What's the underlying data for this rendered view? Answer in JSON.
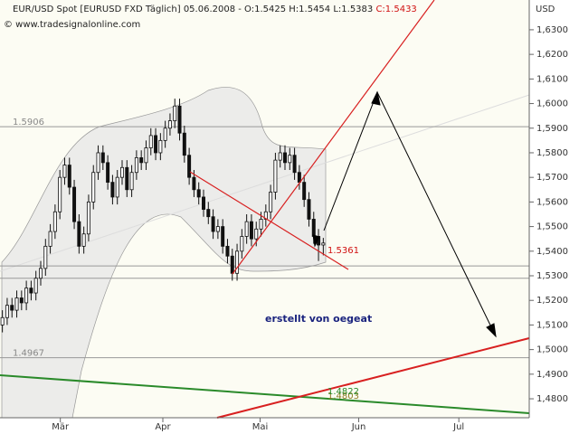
{
  "chart_data": {
    "type": "candlestick",
    "title": "EUR/USD Spot [EURUSD FXD  Täglich] 05.06.2008 - O:1.5425 H:1.5454 L:1.5383",
    "title_close": "C:1.5433",
    "source": "© www.tradesignalonline.com",
    "y_axis_label": "USD",
    "up_color": "#ffffff",
    "down_color": "#111111",
    "xlim": [
      -0.5,
      110
    ],
    "xticks": [
      {
        "value": 12.1,
        "label": "Mär"
      },
      {
        "value": 33.5,
        "label": "Apr"
      },
      {
        "value": 53.8,
        "label": "Mai"
      },
      {
        "value": 74.4,
        "label": "Jun"
      },
      {
        "value": 95.3,
        "label": "Jul"
      }
    ],
    "ylim": [
      1.4723,
      1.6421
    ],
    "yticks": [
      {
        "value": 1.48,
        "label": "1,4800"
      },
      {
        "value": 1.49,
        "label": "1,4900"
      },
      {
        "value": 1.5,
        "label": "1,5000"
      },
      {
        "value": 1.51,
        "label": "1,5100"
      },
      {
        "value": 1.52,
        "label": "1,5200"
      },
      {
        "value": 1.53,
        "label": "1,5300"
      },
      {
        "value": 1.54,
        "label": "1,5400"
      },
      {
        "value": 1.55,
        "label": "1,5500"
      },
      {
        "value": 1.56,
        "label": "1,5600"
      },
      {
        "value": 1.57,
        "label": "1,5700"
      },
      {
        "value": 1.58,
        "label": "1,5800"
      },
      {
        "value": 1.59,
        "label": "1,5900"
      },
      {
        "value": 1.6,
        "label": "1,6000"
      },
      {
        "value": 1.61,
        "label": "1,6100"
      },
      {
        "value": 1.62,
        "label": "1,6200"
      },
      {
        "value": 1.63,
        "label": "1,6300"
      }
    ],
    "levels": [
      1.5906,
      1.4967
    ],
    "extra_levels": [
      1.534,
      1.529
    ],
    "annotations": [
      "1.5361",
      "erstellt von oegeat",
      "1.4803",
      "1.4822"
    ],
    "open": [
      1.51,
      1.513,
      1.518,
      1.516,
      1.521,
      1.519,
      1.525,
      1.523,
      1.529,
      1.533,
      1.542,
      1.548,
      1.556,
      1.57,
      1.575,
      1.566,
      1.552,
      1.542,
      1.547,
      1.56,
      1.572,
      1.58,
      1.576,
      1.568,
      1.562,
      1.57,
      1.574,
      1.565,
      1.572,
      1.578,
      1.576,
      1.582,
      1.587,
      1.58,
      1.585,
      1.59,
      1.593,
      1.599,
      1.588,
      1.579,
      1.57,
      1.565,
      1.562,
      1.557,
      1.554,
      1.548,
      1.55,
      1.542,
      1.538,
      1.531,
      1.54,
      1.546,
      1.552,
      1.545,
      1.549,
      1.553,
      1.556,
      1.564,
      1.577,
      1.58,
      1.576,
      1.579,
      1.572,
      1.568,
      1.561,
      1.553,
      1.546,
      1.5425
    ],
    "high": [
      1.516,
      1.521,
      1.521,
      1.524,
      1.524,
      1.528,
      1.528,
      1.532,
      1.536,
      1.545,
      1.551,
      1.559,
      1.573,
      1.578,
      1.578,
      1.569,
      1.555,
      1.55,
      1.563,
      1.575,
      1.583,
      1.583,
      1.579,
      1.571,
      1.573,
      1.577,
      1.577,
      1.575,
      1.581,
      1.581,
      1.585,
      1.59,
      1.59,
      1.588,
      1.593,
      1.596,
      1.602,
      1.602,
      1.591,
      1.582,
      1.573,
      1.568,
      1.565,
      1.56,
      1.557,
      1.553,
      1.553,
      1.545,
      1.541,
      1.543,
      1.549,
      1.555,
      1.555,
      1.552,
      1.556,
      1.559,
      1.567,
      1.58,
      1.583,
      1.583,
      1.582,
      1.582,
      1.575,
      1.571,
      1.564,
      1.556,
      1.549,
      1.5454
    ],
    "low": [
      1.507,
      1.51,
      1.513,
      1.513,
      1.516,
      1.516,
      1.52,
      1.52,
      1.526,
      1.53,
      1.539,
      1.545,
      1.553,
      1.567,
      1.563,
      1.549,
      1.539,
      1.539,
      1.544,
      1.557,
      1.569,
      1.573,
      1.565,
      1.559,
      1.559,
      1.567,
      1.562,
      1.562,
      1.569,
      1.573,
      1.573,
      1.579,
      1.577,
      1.577,
      1.582,
      1.587,
      1.59,
      1.585,
      1.576,
      1.567,
      1.562,
      1.559,
      1.554,
      1.551,
      1.545,
      1.545,
      1.539,
      1.535,
      1.528,
      1.528,
      1.537,
      1.543,
      1.542,
      1.542,
      1.546,
      1.55,
      1.553,
      1.561,
      1.574,
      1.573,
      1.573,
      1.569,
      1.565,
      1.558,
      1.55,
      1.543,
      1.536,
      1.5383
    ],
    "close": [
      1.513,
      1.518,
      1.516,
      1.521,
      1.519,
      1.525,
      1.523,
      1.529,
      1.533,
      1.542,
      1.548,
      1.556,
      1.57,
      1.575,
      1.566,
      1.552,
      1.542,
      1.547,
      1.56,
      1.572,
      1.58,
      1.576,
      1.568,
      1.562,
      1.57,
      1.574,
      1.565,
      1.572,
      1.578,
      1.576,
      1.582,
      1.587,
      1.58,
      1.585,
      1.59,
      1.593,
      1.599,
      1.588,
      1.579,
      1.57,
      1.565,
      1.562,
      1.557,
      1.554,
      1.548,
      1.55,
      1.542,
      1.538,
      1.531,
      1.54,
      1.546,
      1.552,
      1.545,
      1.549,
      1.553,
      1.556,
      1.564,
      1.577,
      1.58,
      1.576,
      1.579,
      1.572,
      1.568,
      1.561,
      1.553,
      1.546,
      1.5425,
      1.5433
    ]
  }
}
